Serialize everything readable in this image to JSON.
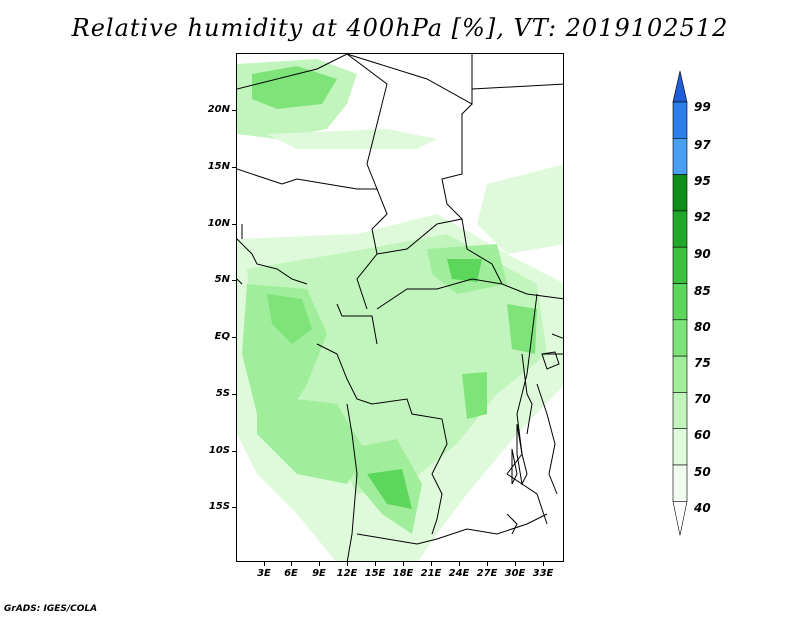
{
  "title": "Relative humidity at 400hPa [%], VT: 2019102512",
  "credit": "GrADS: IGES/COLA",
  "lat_labels": [
    "20N",
    "15N",
    "10N",
    "5N",
    "EQ",
    "5S",
    "10S",
    "15S"
  ],
  "lon_labels": [
    "3E",
    "6E",
    "9E",
    "12E",
    "15E",
    "18E",
    "21E",
    "24E",
    "27E",
    "30E",
    "33E"
  ],
  "colorbar": {
    "levels": [
      "99",
      "97",
      "95",
      "92",
      "90",
      "85",
      "80",
      "75",
      "70",
      "60",
      "50",
      "40"
    ],
    "colors": [
      "#1e5ed8",
      "#2c7ee8",
      "#4aa0f0",
      "#0f8e17",
      "#22a728",
      "#3cc23f",
      "#5cd65b",
      "#7ee47a",
      "#a0ee9b",
      "#c2f5bd",
      "#dffadb",
      "#f1fdef"
    ]
  }
}
